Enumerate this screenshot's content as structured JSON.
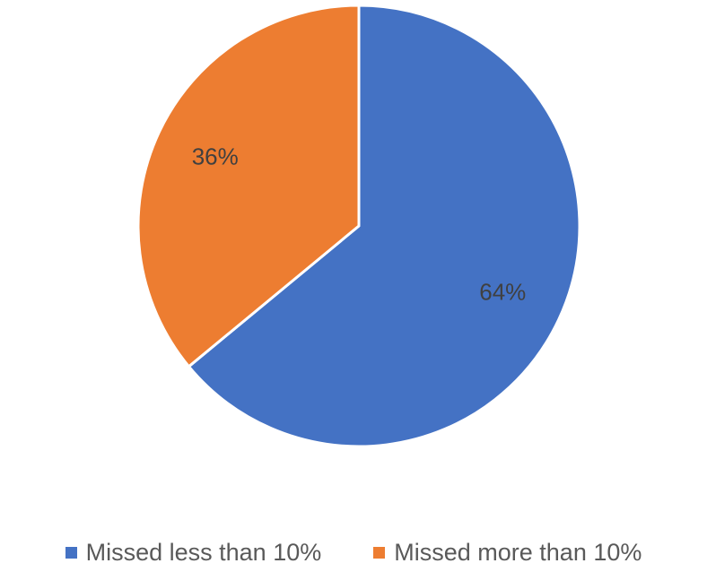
{
  "chart_data": {
    "type": "pie",
    "title": "",
    "slices": [
      {
        "label": "Missed less than 10%",
        "value": 64,
        "display": "64%",
        "color": "#4472C4"
      },
      {
        "label": "Missed more than 10%",
        "value": 36,
        "display": "36%",
        "color": "#ED7D31"
      }
    ],
    "legend_position": "bottom",
    "start_angle_deg": 0,
    "direction": "clockwise"
  }
}
